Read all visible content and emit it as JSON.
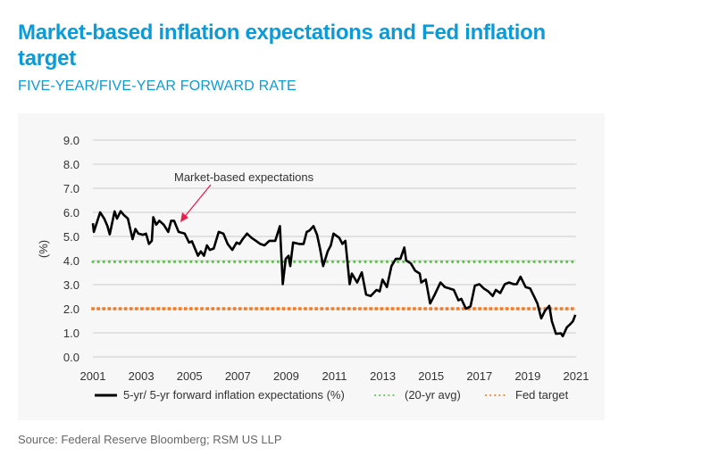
{
  "title": "Market-based inflation expectations and Fed inflation target",
  "subtitle": "FIVE-YEAR/FIVE-YEAR FORWARD RATE",
  "source": "Source: Federal Reserve Bloomberg; RSM US LLP",
  "chart_data": {
    "type": "line",
    "title": "Market-based inflation expectations and Fed inflation target",
    "subtitle": "FIVE-YEAR/FIVE-YEAR FORWARD RATE",
    "ylabel": "(%)",
    "xlabel": "",
    "xlim": [
      2001,
      2021
    ],
    "ylim": [
      0,
      9
    ],
    "xticks": [
      "2001",
      "2003",
      "2005",
      "2007",
      "2009",
      "2011",
      "2013",
      "2015",
      "2017",
      "2019",
      "2021"
    ],
    "yticks": [
      "0.0",
      "1.0",
      "2.0",
      "3.0",
      "4.0",
      "5.0",
      "6.0",
      "7.0",
      "8.0",
      "9.0"
    ],
    "grid": "horizontal",
    "legend_position": "bottom",
    "annotation": "Market-based expectations",
    "colors": {
      "series": "#000000",
      "avg": "#5cbf4a",
      "target": "#f47c20",
      "annotation": "#e8204e",
      "title": "#0a9bd8"
    },
    "series": [
      {
        "name": "5-yr/ 5-yr forward inflation expectations (%)",
        "x": [
          2001.0,
          2001.04,
          2001.3,
          2001.47,
          2001.6,
          2001.7,
          2001.9,
          2002.0,
          2002.15,
          2002.27,
          2002.45,
          2002.64,
          2002.76,
          2002.88,
          2003.07,
          2003.2,
          2003.32,
          2003.44,
          2003.5,
          2003.62,
          2003.75,
          2003.93,
          2004.12,
          2004.24,
          2004.36,
          2004.55,
          2004.8,
          2004.98,
          2005.1,
          2005.35,
          2005.47,
          2005.6,
          2005.72,
          2005.84,
          2006.0,
          2006.21,
          2006.4,
          2006.58,
          2006.77,
          2006.95,
          2007.07,
          2007.2,
          2007.38,
          2007.57,
          2007.75,
          2007.93,
          2008.1,
          2008.3,
          2008.55,
          2008.74,
          2008.86,
          2008.98,
          2009.1,
          2009.17,
          2009.29,
          2009.54,
          2009.72,
          2009.85,
          2009.97,
          2010.13,
          2010.28,
          2010.4,
          2010.53,
          2010.72,
          2010.85,
          2010.96,
          2011.2,
          2011.33,
          2011.45,
          2011.63,
          2011.72,
          2011.94,
          2012.13,
          2012.31,
          2012.5,
          2012.74,
          2012.87,
          2012.99,
          2013.17,
          2013.36,
          2013.54,
          2013.73,
          2013.89,
          2013.97,
          2014.16,
          2014.34,
          2014.53,
          2014.59,
          2014.78,
          2014.96,
          2015.15,
          2015.39,
          2015.57,
          2015.76,
          2015.94,
          2016.13,
          2016.25,
          2016.44,
          2016.63,
          2016.81,
          2017.0,
          2017.18,
          2017.37,
          2017.55,
          2017.68,
          2017.86,
          2018.05,
          2018.23,
          2018.42,
          2018.54,
          2018.7,
          2018.91,
          2019.1,
          2019.28,
          2019.4,
          2019.56,
          2019.71,
          2019.89,
          2020.0,
          2020.17,
          2020.37,
          2020.45,
          2020.62,
          2020.75,
          2020.87,
          2020.97
        ],
        "values": [
          5.55,
          5.19,
          6.0,
          5.74,
          5.44,
          5.09,
          6.04,
          5.74,
          6.05,
          5.9,
          5.74,
          4.89,
          5.31,
          5.12,
          5.07,
          5.12,
          4.69,
          4.82,
          5.8,
          5.49,
          5.65,
          5.49,
          5.19,
          5.65,
          5.65,
          5.19,
          5.12,
          4.75,
          4.8,
          4.2,
          4.38,
          4.2,
          4.63,
          4.44,
          4.5,
          5.19,
          5.12,
          4.69,
          4.44,
          4.75,
          4.69,
          4.89,
          5.12,
          4.94,
          4.82,
          4.69,
          4.63,
          4.82,
          4.82,
          5.43,
          3.02,
          4.07,
          4.2,
          3.77,
          4.75,
          4.69,
          4.69,
          5.19,
          5.25,
          5.43,
          5.07,
          4.5,
          3.77,
          4.38,
          4.63,
          5.12,
          4.94,
          4.69,
          4.82,
          3.02,
          3.46,
          3.09,
          3.51,
          2.59,
          2.53,
          2.78,
          2.72,
          3.21,
          2.9,
          3.77,
          4.07,
          4.07,
          4.54,
          4.0,
          3.88,
          3.58,
          3.46,
          3.09,
          3.21,
          2.22,
          2.59,
          3.09,
          2.9,
          2.84,
          2.78,
          2.35,
          2.41,
          2.0,
          2.1,
          2.96,
          3.02,
          2.84,
          2.72,
          2.53,
          2.78,
          2.65,
          3.02,
          3.09,
          3.02,
          3.02,
          3.33,
          2.9,
          2.84,
          2.47,
          2.22,
          1.6,
          1.91,
          2.12,
          1.48,
          0.96,
          0.98,
          0.86,
          1.23,
          1.35,
          1.48,
          1.75
        ]
      },
      {
        "name": "(20-yr avg)",
        "value": 3.95
      },
      {
        "name": "Fed target",
        "value": 2.0
      }
    ]
  }
}
